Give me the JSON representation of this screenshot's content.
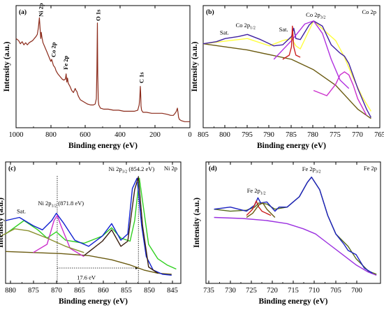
{
  "chart_data": [
    {
      "id": "a",
      "type": "line",
      "panel_label": "(a)",
      "xlabel": "Binding energy (eV)",
      "ylabel": "Intensity (a.u.)",
      "xlim": [
        1000,
        0
      ],
      "x_ticks": [
        "1000",
        "800",
        "600",
        "400",
        "200",
        "0"
      ],
      "series": [
        {
          "color": "#8b2a1a",
          "x": [
            1000,
            985,
            975,
            965,
            955,
            945,
            935,
            925,
            915,
            905,
            895,
            885,
            878,
            872,
            866,
            862,
            858,
            855,
            852,
            850,
            845,
            835,
            822,
            810,
            800,
            795,
            790,
            785,
            780,
            776,
            770,
            760,
            745,
            735,
            725,
            716,
            712,
            708,
            704,
            700,
            690,
            680,
            670,
            660,
            655,
            650,
            645,
            640,
            630,
            610,
            590,
            570,
            555,
            545,
            538,
            535,
            532,
            530,
            527,
            524,
            515,
            495,
            470,
            440,
            410,
            380,
            350,
            320,
            300,
            292,
            288,
            285,
            283,
            281,
            278,
            270,
            250,
            220,
            190,
            160,
            130,
            110,
            95,
            85,
            78,
            72,
            68,
            65,
            60,
            50,
            30,
            10,
            0
          ],
          "y": [
            0.8,
            0.78,
            0.75,
            0.77,
            0.74,
            0.76,
            0.74,
            0.76,
            0.77,
            0.78,
            0.8,
            0.82,
            0.84,
            0.9,
            1.0,
            0.9,
            0.8,
            0.86,
            0.82,
            0.8,
            0.76,
            0.72,
            0.67,
            0.62,
            0.58,
            0.6,
            0.57,
            0.54,
            0.53,
            0.52,
            0.49,
            0.46,
            0.43,
            0.41,
            0.4,
            0.41,
            0.46,
            0.38,
            0.42,
            0.37,
            0.34,
            0.3,
            0.28,
            0.32,
            0.3,
            0.29,
            0.26,
            0.24,
            0.21,
            0.19,
            0.17,
            0.16,
            0.16,
            0.17,
            0.22,
            0.5,
            0.95,
            0.45,
            0.2,
            0.16,
            0.13,
            0.12,
            0.12,
            0.11,
            0.11,
            0.1,
            0.1,
            0.1,
            0.11,
            0.16,
            0.24,
            0.34,
            0.27,
            0.15,
            0.11,
            0.09,
            0.09,
            0.08,
            0.08,
            0.08,
            0.07,
            0.06,
            0.06,
            0.08,
            0.1,
            0.13,
            0.08,
            0.04,
            0.02,
            0.01,
            0.0,
            0.0,
            0.0
          ]
        }
      ],
      "annotations": [
        {
          "text": "Ni 2p",
          "x": 858,
          "y": 1.01
        },
        {
          "text": "Co 2p",
          "x": 785,
          "y": 0.62
        },
        {
          "text": "Fe 2p",
          "x": 715,
          "y": 0.5
        },
        {
          "text": "O 1s",
          "x": 528,
          "y": 0.97
        },
        {
          "text": "C 1s",
          "x": 280,
          "y": 0.37
        }
      ]
    },
    {
      "id": "b",
      "type": "line",
      "panel_label": "(b)",
      "element_label": "Co 2p",
      "xlabel": "Binding energy (eV)",
      "ylabel": "Intensity (a.u.)",
      "xlim": [
        805,
        765
      ],
      "x_ticks": [
        "805",
        "800",
        "795",
        "790",
        "785",
        "780",
        "775",
        "770",
        "765"
      ],
      "series": [
        {
          "color": "#6a5a10",
          "x": [
            805,
            795,
            785,
            780,
            775,
            770,
            767
          ],
          "y": [
            0.75,
            0.69,
            0.6,
            0.5,
            0.35,
            0.12,
            0.03
          ]
        },
        {
          "color": "#ffff40",
          "x": [
            805,
            801,
            795,
            790,
            787,
            785,
            784,
            783,
            780,
            775,
            773,
            771,
            769,
            767
          ],
          "y": [
            0.75,
            0.77,
            0.8,
            0.73,
            0.78,
            0.8,
            0.73,
            0.7,
            0.97,
            0.78,
            0.62,
            0.42,
            0.24,
            0.1
          ]
        },
        {
          "color": "#4020a0",
          "x": [
            805,
            802,
            800,
            797,
            795,
            792,
            789,
            787,
            785,
            784.5,
            784,
            783,
            781,
            780,
            778,
            776,
            774,
            773,
            772,
            770,
            768,
            767
          ],
          "y": [
            0.75,
            0.77,
            0.8,
            0.82,
            0.84,
            0.79,
            0.73,
            0.74,
            0.82,
            0.9,
            0.8,
            0.79,
            0.93,
            0.97,
            0.92,
            0.74,
            0.66,
            0.63,
            0.56,
            0.32,
            0.12,
            0.04
          ]
        },
        {
          "color": "#cc30cc",
          "x": [
            780,
            777,
            775,
            774,
            773,
            772,
            771,
            770,
            768
          ],
          "y": [
            0.3,
            0.25,
            0.36,
            0.45,
            0.48,
            0.45,
            0.35,
            0.22,
            0.06
          ]
        },
        {
          "color": "#b030e0",
          "x": [
            789,
            785,
            782,
            780,
            778,
            776,
            774,
            772
          ],
          "y": [
            0.6,
            0.78,
            0.94,
            0.97,
            0.85,
            0.6,
            0.4,
            0.32
          ]
        },
        {
          "color": "#cc2020",
          "x": [
            787,
            785.5,
            785,
            784.8,
            784.5,
            784,
            783
          ],
          "y": [
            0.6,
            0.64,
            0.72,
            0.92,
            0.72,
            0.64,
            0.62
          ]
        }
      ],
      "annotations": [
        {
          "text": "Sat.",
          "x": 800.2,
          "y": 0.84
        },
        {
          "text": "Co 2p1/2",
          "x": 795.4,
          "y": 0.91
        },
        {
          "text": "Sat.",
          "x": 786.8,
          "y": 0.87
        },
        {
          "text": "Co 2p3/2",
          "x": 779.5,
          "y": 1.01
        }
      ]
    },
    {
      "id": "c",
      "type": "line",
      "panel_label": "(c)",
      "element_label": "Ni 2p",
      "xlabel": "Binding energy (eV)",
      "ylabel": "Intensity (a.u.)",
      "xlim": [
        883,
        845
      ],
      "x_ticks": [
        "880",
        "875",
        "870",
        "865",
        "860",
        "855",
        "850",
        "845"
      ],
      "series": [
        {
          "color": "#6a5a10",
          "x": [
            883,
            877,
            871,
            865,
            860,
            856,
            853,
            850,
            847
          ],
          "y": [
            0.25,
            0.24,
            0.23,
            0.21,
            0.17,
            0.12,
            0.07,
            0.04,
            0.03
          ]
        },
        {
          "color": "#30d020",
          "x": [
            883,
            879,
            876,
            874,
            872,
            870,
            866,
            862,
            860,
            858,
            856,
            855,
            854,
            852,
            850,
            848,
            846
          ],
          "y": [
            0.42,
            0.55,
            0.46,
            0.38,
            0.44,
            0.36,
            0.33,
            0.4,
            0.48,
            0.38,
            0.35,
            0.55,
            0.96,
            0.32,
            0.18,
            0.12,
            0.08
          ]
        },
        {
          "color": "#1020d0",
          "x": [
            883,
            880,
            877,
            875,
            873,
            872,
            870.5,
            868,
            865,
            862,
            860,
            858,
            856.5,
            855.5,
            854.5,
            853.5,
            852.5,
            851,
            849,
            847
          ],
          "y": [
            0.55,
            0.58,
            0.5,
            0.46,
            0.55,
            0.62,
            0.53,
            0.36,
            0.3,
            0.4,
            0.52,
            0.36,
            0.42,
            0.86,
            0.96,
            0.5,
            0.2,
            0.07,
            0.03,
            0.02
          ]
        },
        {
          "color": "#cc30cc",
          "x": [
            877,
            874,
            872.5,
            871.8,
            871,
            869,
            866
          ],
          "y": [
            0.24,
            0.32,
            0.55,
            0.6,
            0.5,
            0.28,
            0.2
          ]
        },
        {
          "color": "#8a9030",
          "x": [
            884,
            881,
            878,
            874,
            870,
            866
          ],
          "y": [
            0.4,
            0.47,
            0.45,
            0.38,
            0.3,
            0.24
          ]
        },
        {
          "color": "#3a2010",
          "x": [
            866,
            862,
            860,
            858,
            856.5,
            855,
            854.2,
            853.3,
            852,
            850
          ],
          "y": [
            0.21,
            0.35,
            0.46,
            0.3,
            0.35,
            0.85,
            0.97,
            0.5,
            0.1,
            0.04
          ]
        }
      ],
      "annotations": [
        {
          "text": "Ni 2p3/2 (854.2 eV)",
          "x": 855.7,
          "y": 1.03
        },
        {
          "text": "Ni 2p1/2 (871.8 eV)",
          "x": 871,
          "y": 0.7
        },
        {
          "text": "Sat.",
          "x": 879.6,
          "y": 0.62
        },
        {
          "text": "17.6 eV",
          "x": 865.5,
          "y": -0.02
        }
      ],
      "reference_lines": [
        871.8,
        854.2
      ]
    },
    {
      "id": "d",
      "type": "line",
      "panel_label": "(d)",
      "element_label": "Fe 2p",
      "xlabel": "Binding energy (eV)",
      "ylabel": "Intensity (a.u.)",
      "xlim": [
        737,
        694
      ],
      "x_ticks": [
        "735",
        "730",
        "725",
        "720",
        "715",
        "710",
        "705",
        "700"
      ],
      "series": [
        {
          "color": "#9b30e0",
          "x": [
            735,
            728,
            722,
            717,
            713,
            710,
            707,
            704,
            700,
            697,
            695
          ],
          "y": [
            0.58,
            0.57,
            0.55,
            0.52,
            0.47,
            0.42,
            0.33,
            0.24,
            0.12,
            0.05,
            0.02
          ]
        },
        {
          "color": "#556b1a",
          "x": [
            735,
            731,
            727,
            725,
            724,
            722,
            720,
            717,
            714,
            712,
            711,
            709,
            707,
            705,
            702,
            700,
            697,
            695
          ],
          "y": [
            0.66,
            0.64,
            0.65,
            0.68,
            0.72,
            0.71,
            0.66,
            0.68,
            0.78,
            0.92,
            0.97,
            0.85,
            0.6,
            0.42,
            0.3,
            0.18,
            0.06,
            0.03
          ]
        },
        {
          "color": "#1a20c0",
          "x": [
            735,
            731,
            727,
            725,
            724.2,
            723.5,
            722,
            720,
            719,
            717,
            714,
            712,
            711,
            709,
            707,
            705,
            703,
            702,
            700,
            698,
            696
          ],
          "y": [
            0.66,
            0.68,
            0.64,
            0.7,
            0.77,
            0.72,
            0.73,
            0.64,
            0.68,
            0.68,
            0.78,
            0.92,
            0.97,
            0.85,
            0.6,
            0.42,
            0.32,
            0.26,
            0.22,
            0.09,
            0.04
          ]
        },
        {
          "color": "#cc2020",
          "x": [
            727,
            725.5,
            724.6,
            724,
            723.2,
            721
          ],
          "y": [
            0.6,
            0.66,
            0.74,
            0.68,
            0.64,
            0.6
          ]
        },
        {
          "color": "#6a5a10",
          "x": [
            727,
            725.5,
            724,
            723,
            722,
            720
          ],
          "y": [
            0.58,
            0.62,
            0.7,
            0.72,
            0.66,
            0.58
          ]
        }
      ],
      "annotations": [
        {
          "text": "Fe 2p1/2",
          "x": 724.6,
          "y": 0.82
        },
        {
          "text": "Fe 2p3/2",
          "x": 711,
          "y": 1.03
        }
      ]
    }
  ]
}
